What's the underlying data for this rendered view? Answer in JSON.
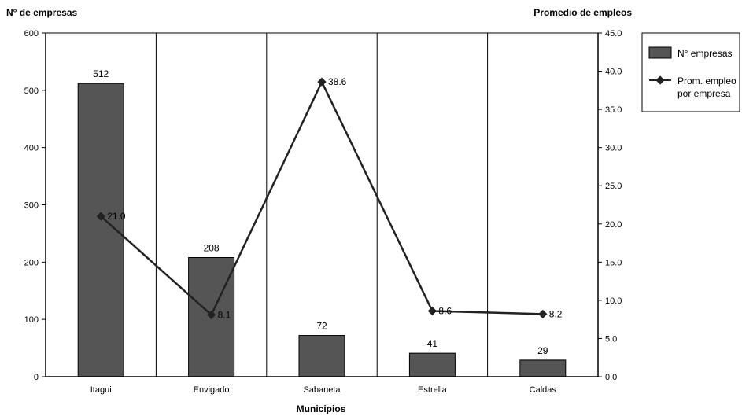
{
  "chart_data": {
    "type": "bar",
    "categories": [
      "Itagui",
      "Envigado",
      "Sabaneta",
      "Estrella",
      "Caldas"
    ],
    "series": [
      {
        "name": "N° empresas",
        "type": "bar",
        "axis": "left",
        "values": [
          512,
          208,
          72,
          41,
          29
        ],
        "labels": [
          "512",
          "208",
          "72",
          "41",
          "29"
        ],
        "color": "#555555"
      },
      {
        "name": "Prom. empleo por empresa",
        "name_lines": [
          "Prom. empleo",
          "por empresa"
        ],
        "type": "line",
        "axis": "right",
        "values": [
          21.0,
          8.1,
          38.6,
          8.6,
          8.2
        ],
        "labels": [
          "21.0",
          "8.1",
          "38.6",
          "8.6",
          "8.2"
        ],
        "color": "#222222"
      }
    ],
    "title": "",
    "xlabel": "Municipios",
    "ylabel": "N° de empresas",
    "y2label": "Promedio de empleos",
    "ylim": [
      0,
      600
    ],
    "yticks": [
      "0",
      "100",
      "200",
      "300",
      "400",
      "500",
      "600"
    ],
    "y2lim": [
      0,
      45
    ],
    "y2ticks": [
      "0.0",
      "5.0",
      "10.0",
      "15.0",
      "20.0",
      "25.0",
      "30.0",
      "35.0",
      "40.0",
      "45.0"
    ],
    "grid": "vertical",
    "legend": "right"
  }
}
